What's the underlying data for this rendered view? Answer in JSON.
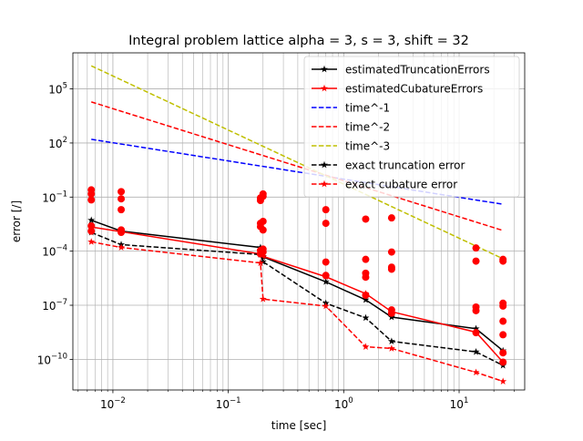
{
  "chart_data": {
    "type": "line",
    "title": "Integral problem lattice alpha = 3, s = 3, shift = 32",
    "xlabel": "time [sec]",
    "ylabel": "error [/]",
    "xscale": "log",
    "yscale": "log",
    "xlim": [
      0.0045,
      37
    ],
    "ylim": [
      2e-12,
      10000000.0
    ],
    "grid": true,
    "legend_position": "top-right",
    "x_ticks": [
      {
        "value": 0.01,
        "base": "10",
        "exp": "−2"
      },
      {
        "value": 0.1,
        "base": "10",
        "exp": "−1"
      },
      {
        "value": 1,
        "base": "10",
        "exp": "0"
      },
      {
        "value": 10,
        "base": "10",
        "exp": "1"
      }
    ],
    "y_ticks": [
      {
        "value": 1e-10,
        "base": "10",
        "exp": "−10"
      },
      {
        "value": 1e-07,
        "base": "10",
        "exp": "−7"
      },
      {
        "value": 0.0001,
        "base": "10",
        "exp": "−4"
      },
      {
        "value": 0.1,
        "base": "10",
        "exp": "−1"
      },
      {
        "value": 100,
        "base": "10",
        "exp": "2"
      },
      {
        "value": 100000,
        "base": "10",
        "exp": "5"
      }
    ],
    "series": [
      {
        "name": "estimatedTruncationErrors",
        "color": "#000000",
        "style": "solid",
        "marker": "star",
        "x": [
          0.0065,
          0.0118,
          0.19,
          0.2,
          0.7,
          1.55,
          2.6,
          14,
          24
        ],
        "y": [
          0.0052,
          0.0013,
          0.00016,
          4.8e-05,
          2e-06,
          2e-07,
          2.2e-08,
          5e-09,
          3e-10
        ]
      },
      {
        "name": "estimatedCubatureErrors",
        "color": "#ff0000",
        "style": "solid",
        "marker": "star",
        "x": [
          0.0065,
          0.0118,
          0.19,
          0.2,
          0.7,
          1.55,
          2.6,
          14,
          24
        ],
        "y": [
          0.0022,
          0.0012,
          7e-05,
          5.2e-05,
          3.8e-06,
          4.4e-07,
          4.4e-08,
          3.2e-09,
          7e-11
        ]
      },
      {
        "name": "time^-1",
        "color": "#0000ff",
        "style": "dashed",
        "marker": "none",
        "x": [
          0.0065,
          24
        ],
        "y": [
          160,
          0.04
        ]
      },
      {
        "name": "time^-2",
        "color": "#ff0000",
        "style": "dashed",
        "marker": "none",
        "x": [
          0.0065,
          24
        ],
        "y": [
          19000,
          0.0014
        ]
      },
      {
        "name": "time^-3",
        "color": "#bfbf00",
        "style": "dashed",
        "marker": "none",
        "x": [
          0.0065,
          24
        ],
        "y": [
          1900000,
          3.8e-05
        ]
      },
      {
        "name": "exact truncation error",
        "color": "#000000",
        "style": "dashed",
        "marker": "star",
        "x": [
          0.0065,
          0.0118,
          0.19,
          0.2,
          0.7,
          1.55,
          2.6,
          14,
          24
        ],
        "y": [
          0.0011,
          0.00023,
          6.5e-05,
          2.6e-05,
          1.3e-07,
          2e-08,
          1e-09,
          2.6e-10,
          4.6e-11
        ]
      },
      {
        "name": "exact cubature error",
        "color": "#ff0000",
        "style": "dashed",
        "marker": "star",
        "x": [
          0.0065,
          0.0118,
          0.19,
          0.2,
          0.7,
          1.55,
          2.6,
          14,
          24
        ],
        "y": [
          0.00033,
          0.00016,
          2.2e-05,
          2.2e-07,
          9e-08,
          5e-10,
          4e-10,
          1.9e-11,
          6e-12
        ]
      }
    ],
    "scatter_points": {
      "color": "#ff0000",
      "marker": "circle",
      "x": [
        0.0065,
        0.0065,
        0.0065,
        0.0065,
        0.0065,
        0.0118,
        0.0118,
        0.0118,
        0.0118,
        0.0118,
        0.19,
        0.19,
        0.19,
        0.19,
        0.19,
        0.19,
        0.2,
        0.2,
        0.2,
        0.2,
        0.2,
        0.2,
        0.7,
        0.7,
        0.7,
        0.7,
        1.55,
        1.55,
        1.55,
        1.55,
        1.55,
        2.6,
        2.6,
        2.6,
        2.6,
        2.6,
        2.6,
        14,
        14,
        14,
        14,
        14,
        24,
        24,
        24,
        24,
        24,
        24,
        24,
        24
      ],
      "y": [
        0.25,
        0.15,
        0.07,
        0.0025,
        0.0013,
        0.2,
        0.08,
        0.02,
        0.0015,
        0.0011,
        0.09,
        0.065,
        0.0035,
        0.0023,
        0.00011,
        7e-05,
        0.15,
        0.11,
        0.0045,
        0.0015,
        0.00013,
        9e-05,
        0.02,
        0.0035,
        2.5e-05,
        4.5e-06,
        0.006,
        3.5e-05,
        6e-06,
        3.6e-06,
        3.6e-07,
        0.007,
        9e-05,
        1.3e-05,
        1e-05,
        5.5e-08,
        3.6e-08,
        0.00015,
        2.8e-05,
        8e-08,
        5e-08,
        3e-09,
        3.5e-05,
        2.8e-05,
        1.3e-07,
        9e-08,
        1.3e-08,
        2.3e-09,
        2.3e-10,
        7e-11
      ]
    }
  }
}
